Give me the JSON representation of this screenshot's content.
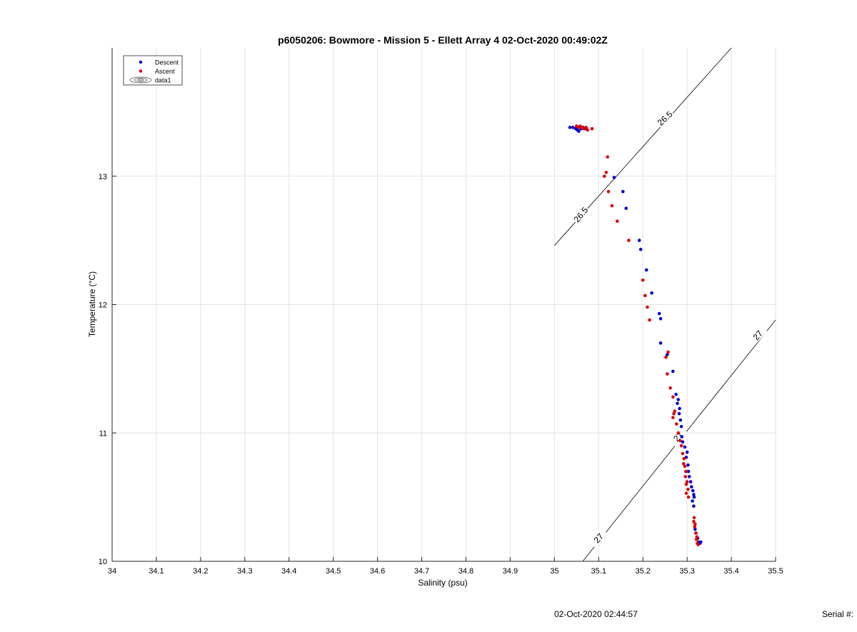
{
  "chart_data": {
    "type": "scatter",
    "title": "p6050206: Bowmore - Mission 5 - Ellett Array 4 02-Oct-2020 00:49:02Z",
    "xlabel": "Salinity (psu)",
    "ylabel": "Temperature (°C)",
    "xlim": [
      34,
      35.5
    ],
    "ylim": [
      10,
      14
    ],
    "xticks": [
      "34",
      "34.1",
      "34.2",
      "34.3",
      "34.4",
      "34.5",
      "34.6",
      "34.7",
      "34.8",
      "34.9",
      "35",
      "35.1",
      "35.2",
      "35.3",
      "35.4",
      "35.5"
    ],
    "yticks": [
      "10",
      "11",
      "12",
      "13"
    ],
    "grid": true,
    "legend_position": "top-left",
    "legend": [
      "Descent",
      "Ascent",
      "data1"
    ],
    "series": [
      {
        "name": "Descent",
        "color": "#0000cc",
        "points": [
          [
            35.035,
            13.38
          ],
          [
            35.042,
            13.38
          ],
          [
            35.048,
            13.37
          ],
          [
            35.052,
            13.36
          ],
          [
            35.055,
            13.35
          ],
          [
            35.06,
            13.37
          ],
          [
            35.065,
            13.38
          ],
          [
            35.07,
            13.37
          ],
          [
            35.135,
            12.99
          ],
          [
            35.155,
            12.88
          ],
          [
            35.162,
            12.75
          ],
          [
            35.192,
            12.5
          ],
          [
            35.195,
            12.43
          ],
          [
            35.208,
            12.27
          ],
          [
            35.22,
            12.09
          ],
          [
            35.237,
            11.93
          ],
          [
            35.24,
            11.89
          ],
          [
            35.24,
            11.7
          ],
          [
            35.255,
            11.61
          ],
          [
            35.268,
            11.48
          ],
          [
            35.275,
            11.3
          ],
          [
            35.28,
            11.26
          ],
          [
            35.278,
            11.23
          ],
          [
            35.283,
            11.19
          ],
          [
            35.282,
            11.15
          ],
          [
            35.285,
            11.1
          ],
          [
            35.287,
            11.05
          ],
          [
            35.288,
            10.97
          ],
          [
            35.29,
            10.93
          ],
          [
            35.295,
            10.89
          ],
          [
            35.3,
            10.85
          ],
          [
            35.298,
            10.81
          ],
          [
            35.302,
            10.75
          ],
          [
            35.303,
            10.7
          ],
          [
            35.305,
            10.66
          ],
          [
            35.308,
            10.62
          ],
          [
            35.31,
            10.58
          ],
          [
            35.313,
            10.55
          ],
          [
            35.315,
            10.52
          ],
          [
            35.316,
            10.5
          ],
          [
            35.312,
            10.47
          ],
          [
            35.315,
            10.43
          ],
          [
            35.318,
            10.25
          ],
          [
            35.32,
            10.22
          ],
          [
            35.324,
            10.18
          ],
          [
            35.326,
            10.15
          ],
          [
            35.329,
            10.14
          ],
          [
            35.331,
            10.15
          ]
        ]
      },
      {
        "name": "Ascent",
        "color": "#dd0000",
        "points": [
          [
            35.05,
            13.39
          ],
          [
            35.055,
            13.38
          ],
          [
            35.058,
            13.39
          ],
          [
            35.062,
            13.38
          ],
          [
            35.066,
            13.37
          ],
          [
            35.072,
            13.38
          ],
          [
            35.075,
            13.36
          ],
          [
            35.085,
            13.37
          ],
          [
            35.12,
            13.15
          ],
          [
            35.117,
            13.03
          ],
          [
            35.113,
            13.0
          ],
          [
            35.122,
            12.88
          ],
          [
            35.13,
            12.77
          ],
          [
            35.142,
            12.65
          ],
          [
            35.168,
            12.5
          ],
          [
            35.2,
            12.19
          ],
          [
            35.205,
            12.07
          ],
          [
            35.21,
            11.98
          ],
          [
            35.215,
            11.88
          ],
          [
            35.252,
            11.59
          ],
          [
            35.257,
            11.63
          ],
          [
            35.255,
            11.46
          ],
          [
            35.262,
            11.35
          ],
          [
            35.268,
            11.28
          ],
          [
            35.272,
            11.17
          ],
          [
            35.27,
            11.15
          ],
          [
            35.268,
            11.12
          ],
          [
            35.276,
            11.07
          ],
          [
            35.28,
            11.0
          ],
          [
            35.284,
            10.94
          ],
          [
            35.287,
            10.9
          ],
          [
            35.29,
            10.84
          ],
          [
            35.293,
            10.8
          ],
          [
            35.292,
            10.76
          ],
          [
            35.295,
            10.74
          ],
          [
            35.297,
            10.7
          ],
          [
            35.296,
            10.66
          ],
          [
            35.3,
            10.62
          ],
          [
            35.298,
            10.6
          ],
          [
            35.302,
            10.56
          ],
          [
            35.298,
            10.53
          ],
          [
            35.303,
            10.5
          ],
          [
            35.316,
            10.34
          ],
          [
            35.315,
            10.31
          ],
          [
            35.318,
            10.29
          ],
          [
            35.317,
            10.27
          ],
          [
            35.32,
            10.22
          ],
          [
            35.322,
            10.19
          ],
          [
            35.321,
            10.17
          ],
          [
            35.323,
            10.14
          ],
          [
            35.325,
            10.13
          ]
        ]
      }
    ],
    "contours": [
      {
        "name": "data1",
        "label": "26.5",
        "color": "#000000",
        "points": [
          [
            35.0,
            12.46
          ],
          [
            35.4,
            14.0
          ]
        ],
        "label_at": [
          [
            35.06,
            12.7,
            -50
          ],
          [
            35.25,
            13.45,
            -42
          ]
        ]
      },
      {
        "name": "data1",
        "label": "27",
        "color": "#000000",
        "points": [
          [
            35.064,
            10.0
          ],
          [
            35.5,
            11.88
          ]
        ],
        "label_at": [
          [
            35.1,
            10.18,
            -48
          ],
          [
            35.28,
            10.97,
            -48
          ],
          [
            35.46,
            11.76,
            -48
          ]
        ]
      }
    ]
  },
  "footer": {
    "timestamp": "02-Oct-2020 02:44:57",
    "serial": "Serial #:"
  }
}
